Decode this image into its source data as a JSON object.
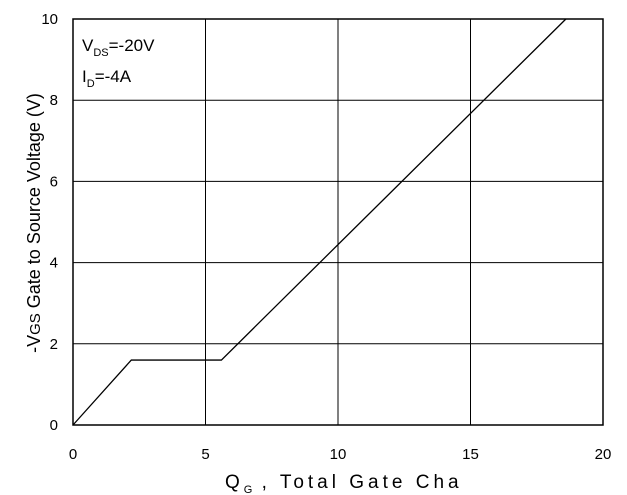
{
  "chart_data": {
    "type": "line",
    "xlabel": {
      "main": "Q",
      "sub": "G",
      "rest": " , Total Gate Cha"
    },
    "ylabel": {
      "prefix": "-V",
      "sub": "GS",
      "rest": " Gate to Source Voltage (V)"
    },
    "xlim": [
      0,
      20
    ],
    "ylim": [
      0,
      10
    ],
    "xticks": [
      "0",
      "5",
      "10",
      "15",
      "20"
    ],
    "yticks": [
      "0",
      "2",
      "4",
      "6",
      "8",
      "10"
    ],
    "grid": true,
    "annotations": [
      {
        "main": "V",
        "sub": "DS",
        "rest": "=-20V"
      },
      {
        "main": "I",
        "sub": "D",
        "rest": "=-4A"
      }
    ],
    "series": [
      {
        "points": [
          [
            0,
            0
          ],
          [
            2.2,
            1.6
          ],
          [
            5.6,
            1.6
          ],
          [
            18.6,
            10
          ]
        ]
      }
    ]
  }
}
